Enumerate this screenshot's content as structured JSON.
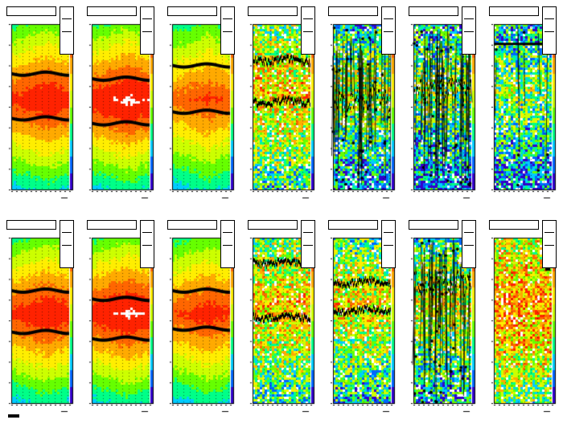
{
  "colors": {
    "background": "#ffffff",
    "frame": "#000000",
    "palette": [
      "#3300cc",
      "#0066ff",
      "#00ccff",
      "#00ff88",
      "#66ff00",
      "#ccff00",
      "#ffee00",
      "#ffaa00",
      "#ff6600",
      "#ff2200"
    ]
  },
  "chart_data": [
    {
      "type": "heatmap",
      "row": 0,
      "col": 0,
      "noise": "low",
      "bands": [
        0.3,
        0.57
      ],
      "band_style": "smooth",
      "hot": 0.75
    },
    {
      "type": "heatmap",
      "row": 0,
      "col": 1,
      "noise": "low",
      "bands": [
        0.33,
        0.6
      ],
      "band_style": "smooth",
      "hot": 0.8
    },
    {
      "type": "heatmap",
      "row": 0,
      "col": 2,
      "noise": "low",
      "bands": [
        0.25,
        0.53
      ],
      "band_style": "smooth",
      "hot": 0.65
    },
    {
      "type": "heatmap",
      "row": 0,
      "col": 3,
      "noise": "high",
      "bands": [
        0.22,
        0.47
      ],
      "band_style": "noisy",
      "hot": 0.45
    },
    {
      "type": "heatmap",
      "row": 0,
      "col": 4,
      "noise": "high",
      "bands": [
        0.45
      ],
      "band_style": "chaotic",
      "hot": 0.3
    },
    {
      "type": "heatmap",
      "row": 0,
      "col": 5,
      "noise": "high",
      "bands": [
        0.4
      ],
      "band_style": "chaotic",
      "hot": 0.25
    },
    {
      "type": "heatmap",
      "row": 0,
      "col": 6,
      "noise": "high",
      "bands": [
        0.12
      ],
      "band_style": "sparse",
      "hot": 0.25
    },
    {
      "type": "heatmap",
      "row": 1,
      "col": 0,
      "noise": "low",
      "bands": [
        0.32,
        0.57
      ],
      "band_style": "smooth",
      "hot": 0.75
    },
    {
      "type": "heatmap",
      "row": 1,
      "col": 1,
      "noise": "low",
      "bands": [
        0.37,
        0.61
      ],
      "band_style": "smooth",
      "hot": 0.8
    },
    {
      "type": "heatmap",
      "row": 1,
      "col": 2,
      "noise": "low",
      "bands": [
        0.32,
        0.55
      ],
      "band_style": "smooth",
      "hot": 0.7
    },
    {
      "type": "heatmap",
      "row": 1,
      "col": 3,
      "noise": "high",
      "bands": [
        0.15,
        0.48
      ],
      "band_style": "noisy",
      "hot": 0.45
    },
    {
      "type": "heatmap",
      "row": 1,
      "col": 4,
      "noise": "high",
      "bands": [
        0.27,
        0.44
      ],
      "band_style": "noisy",
      "hot": 0.4
    },
    {
      "type": "heatmap",
      "row": 1,
      "col": 5,
      "noise": "high",
      "bands": [
        0.28
      ],
      "band_style": "chaotic",
      "hot": 0.35
    },
    {
      "type": "heatmap",
      "row": 1,
      "col": 6,
      "noise": "high",
      "bands": [],
      "band_style": "none",
      "hot": 0.55
    }
  ]
}
